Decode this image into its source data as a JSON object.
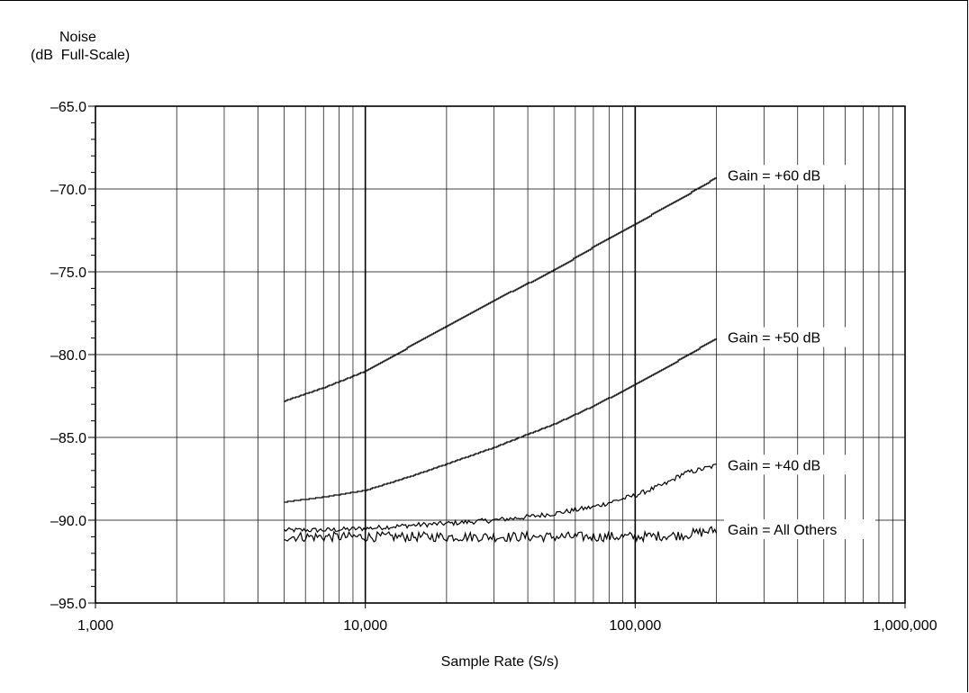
{
  "chart_data": {
    "type": "line",
    "xscale": "log",
    "xlim": [
      1000,
      1000000
    ],
    "ylim": [
      -95.0,
      -65.0
    ],
    "xlabel": "Sample Rate (S/s)",
    "ylabel_line1": "Noise",
    "ylabel_line2": "(dB  Full-Scale)",
    "xticks": [
      1000,
      10000,
      100000,
      1000000
    ],
    "xtick_labels": [
      "1,000",
      "10,000",
      "100,000",
      "1,000,000"
    ],
    "yticks": [
      -65.0,
      -70.0,
      -75.0,
      -80.0,
      -85.0,
      -90.0,
      -95.0
    ],
    "ytick_labels": [
      "–65.0",
      "–70.0",
      "–75.0",
      "–80.0",
      "–85.0",
      "–90.0",
      "–95.0"
    ],
    "grid": true,
    "series": [
      {
        "name": "Gain = +60 dB",
        "x": [
          5000,
          7000,
          10000,
          15000,
          20000,
          30000,
          40000,
          50000,
          70000,
          100000,
          150000,
          200000
        ],
        "y": [
          -82.8,
          -82.0,
          -81.0,
          -79.4,
          -78.3,
          -76.7,
          -75.7,
          -74.9,
          -73.5,
          -72.1,
          -70.5,
          -69.3
        ],
        "noise": 0.0
      },
      {
        "name": "Gain = +50 dB",
        "x": [
          5000,
          7000,
          10000,
          15000,
          20000,
          30000,
          40000,
          50000,
          70000,
          100000,
          150000,
          200000
        ],
        "y": [
          -88.9,
          -88.6,
          -88.2,
          -87.3,
          -86.6,
          -85.6,
          -84.8,
          -84.2,
          -83.1,
          -81.8,
          -80.2,
          -79.0
        ],
        "noise": 0.0
      },
      {
        "name": "Gain = +40 dB",
        "x": [
          5000,
          7000,
          10000,
          15000,
          20000,
          30000,
          40000,
          50000,
          70000,
          100000,
          130000,
          150000,
          200000
        ],
        "y": [
          -90.6,
          -90.6,
          -90.5,
          -90.3,
          -90.2,
          -90.0,
          -89.8,
          -89.6,
          -89.2,
          -88.5,
          -87.8,
          -87.2,
          -86.7
        ],
        "noise": 0.15
      },
      {
        "name": "Gain = All Others",
        "x": [
          5000,
          10000,
          20000,
          50000,
          100000,
          150000,
          200000
        ],
        "y": [
          -91.0,
          -91.0,
          -91.0,
          -91.0,
          -91.0,
          -90.9,
          -90.6
        ],
        "noise": 0.3
      }
    ],
    "label_positions_y": [
      -69.2,
      -79.0,
      -86.7,
      -90.6
    ]
  }
}
